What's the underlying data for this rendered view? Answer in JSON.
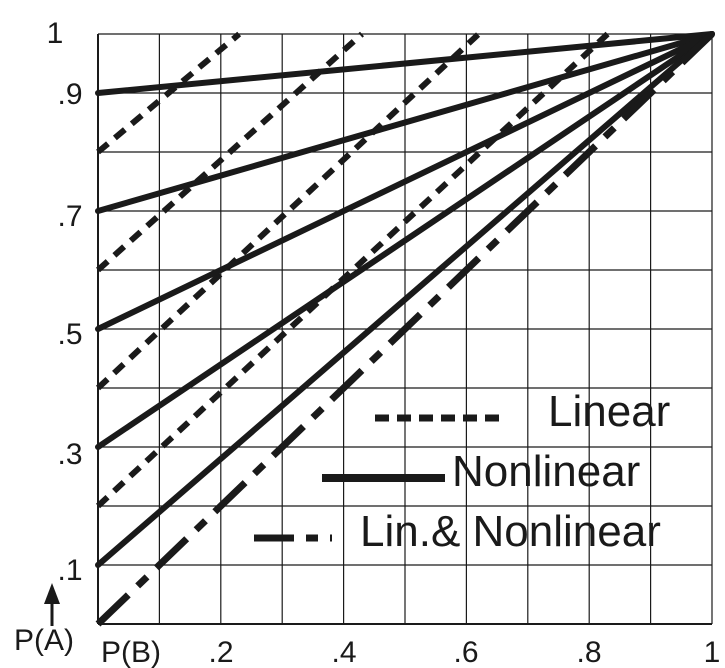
{
  "chart_data": {
    "type": "line",
    "xlabel": "P(B)",
    "ylabel": "P(A)",
    "xlim": [
      0,
      1
    ],
    "ylim": [
      0,
      1
    ],
    "xticks": [
      ".2",
      ".4",
      ".6",
      ".8",
      "1"
    ],
    "yticks": [
      ".1",
      ".3",
      ".5",
      ".7",
      ".9",
      "1"
    ],
    "grid": true,
    "legend_position": "bottom-right",
    "legend": [
      {
        "label": "Linear",
        "style": "short-dash"
      },
      {
        "label": "Nonlinear",
        "style": "solid"
      },
      {
        "label": "Lin.& Nonlinear",
        "style": "long-dash-dot"
      }
    ],
    "linear_series": [
      {
        "x": [
          0,
          0.23
        ],
        "y": [
          0.8,
          1.0
        ]
      },
      {
        "x": [
          0,
          0.43
        ],
        "y": [
          0.6,
          1.0
        ]
      },
      {
        "x": [
          0,
          0.62
        ],
        "y": [
          0.4,
          1.0
        ]
      },
      {
        "x": [
          0,
          0.83
        ],
        "y": [
          0.2,
          1.0
        ]
      }
    ],
    "nonlinear_series": [
      {
        "x": [
          0,
          1
        ],
        "y": [
          0.9,
          1.0
        ]
      },
      {
        "x": [
          0,
          1
        ],
        "y": [
          0.7,
          1.0
        ]
      },
      {
        "x": [
          0,
          1
        ],
        "y": [
          0.5,
          1.0
        ]
      },
      {
        "x": [
          0,
          1
        ],
        "y": [
          0.3,
          1.0
        ]
      },
      {
        "x": [
          0,
          1
        ],
        "y": [
          0.1,
          1.0
        ]
      }
    ],
    "combined_series": [
      {
        "x": [
          0,
          1
        ],
        "y": [
          0.0,
          1.0
        ]
      }
    ]
  }
}
